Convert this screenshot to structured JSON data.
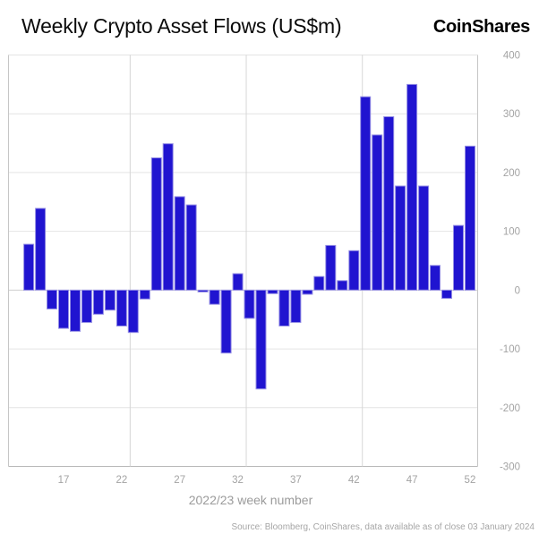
{
  "header": {
    "title": "Weekly Crypto Asset Flows (US$m)",
    "logo": "CoinShares"
  },
  "chart_data": {
    "type": "bar",
    "title": "Weekly Crypto Asset Flows (US$m)",
    "xlabel": "2022/23 week number",
    "ylabel": "",
    "x": [
      14,
      15,
      16,
      17,
      18,
      19,
      20,
      21,
      22,
      23,
      24,
      25,
      26,
      27,
      28,
      29,
      30,
      31,
      32,
      33,
      34,
      35,
      36,
      37,
      38,
      39,
      40,
      41,
      42,
      43,
      44,
      45,
      46,
      47,
      48,
      49,
      50,
      51,
      52
    ],
    "values": [
      78,
      139,
      -32,
      -65,
      -70,
      -55,
      -41,
      -34,
      -61,
      -72,
      -15,
      225,
      249,
      159,
      145,
      -3,
      -24,
      -107,
      28,
      -48,
      -168,
      -6,
      -61,
      -55,
      -7,
      23,
      76,
      16,
      67,
      329,
      264,
      295,
      177,
      350,
      177,
      42,
      -14,
      110,
      245
    ],
    "ylim": [
      -300,
      400
    ],
    "yticks": [
      400,
      300,
      200,
      100,
      0,
      -100,
      -200,
      -300
    ],
    "xticks": [
      17,
      22,
      27,
      32,
      37,
      42,
      47,
      52
    ],
    "grid": true,
    "legend": "none",
    "colors": {
      "bar_fill": "#2014d0",
      "bar_border": "#938de4",
      "grid_line": "#e4e4e4",
      "zero_line": "#cfcfcf",
      "axis_line": "#b9b9b9",
      "border_line": "#c6c6c6",
      "tick_label": "#a3a3a3",
      "axis_title": "#9b9b9b"
    }
  },
  "footer": {
    "source": "Source: Bloomberg, CoinShares, data available as of close 03 January 2024"
  }
}
